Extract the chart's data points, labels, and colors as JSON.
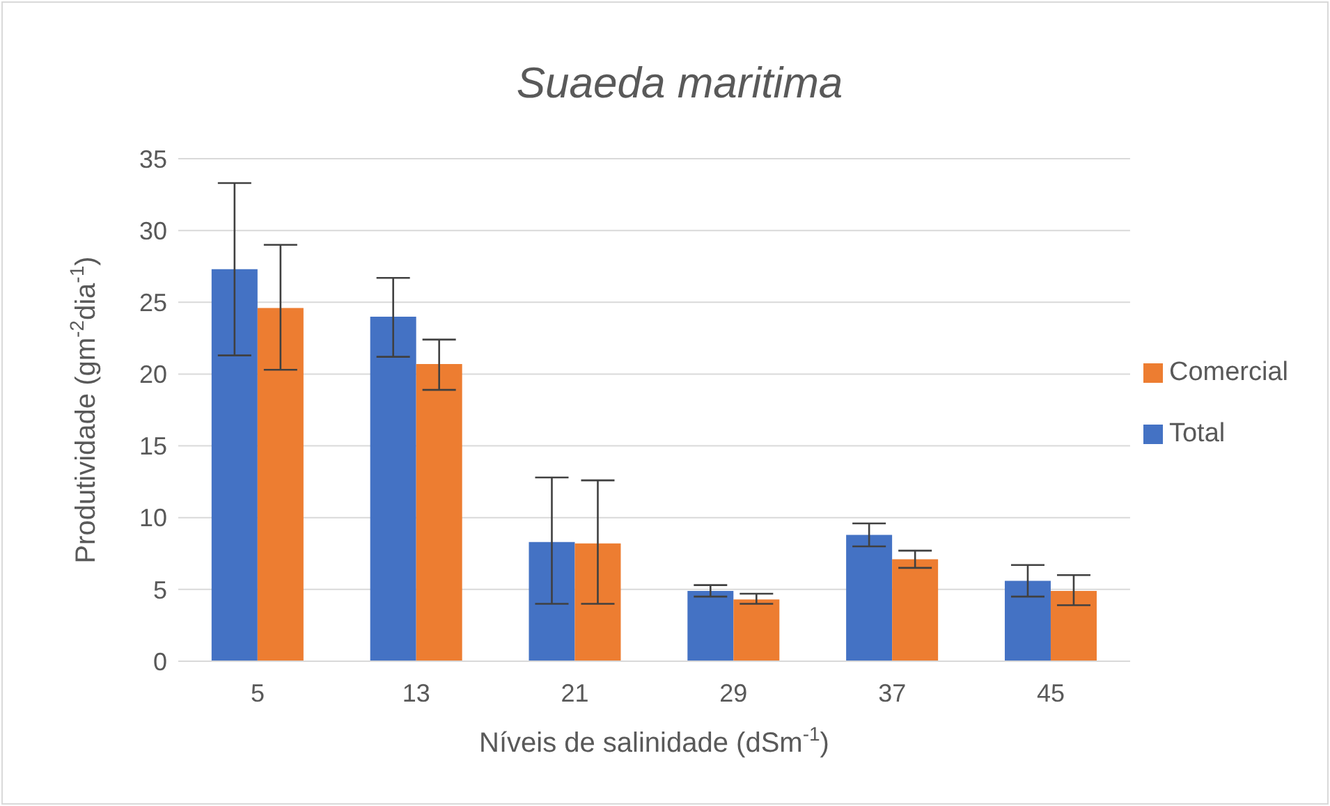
{
  "chart_data": {
    "type": "bar",
    "title": "Suaeda maritima",
    "xlabel": "Níveis de salinidade (dSm$^{-1}$)",
    "ylabel": "Produtividade (gm$^{-2}$dia$^{-1}$)",
    "categories": [
      "5",
      "13",
      "21",
      "29",
      "37",
      "45"
    ],
    "series": [
      {
        "name": "Total",
        "color": "#4472c4",
        "values": [
          27.3,
          24.0,
          8.3,
          4.9,
          8.8,
          5.6
        ],
        "errors": [
          [
            21.3,
            33.3
          ],
          [
            21.2,
            26.7
          ],
          [
            4.0,
            12.8
          ],
          [
            4.5,
            5.3
          ],
          [
            8.0,
            9.6
          ],
          [
            4.5,
            6.7
          ]
        ]
      },
      {
        "name": "Comercial",
        "color": "#ed7d31",
        "values": [
          24.6,
          20.7,
          8.2,
          4.3,
          7.1,
          4.9
        ],
        "errors": [
          [
            20.3,
            29.0
          ],
          [
            18.9,
            22.4
          ],
          [
            4.0,
            12.6
          ],
          [
            4.0,
            4.7
          ],
          [
            6.5,
            7.7
          ],
          [
            3.9,
            6.0
          ]
        ]
      }
    ],
    "ylim": [
      0,
      35
    ],
    "yticks": [
      0,
      5,
      10,
      15,
      20,
      25,
      30,
      35
    ],
    "grid": "y",
    "legend": "right"
  }
}
